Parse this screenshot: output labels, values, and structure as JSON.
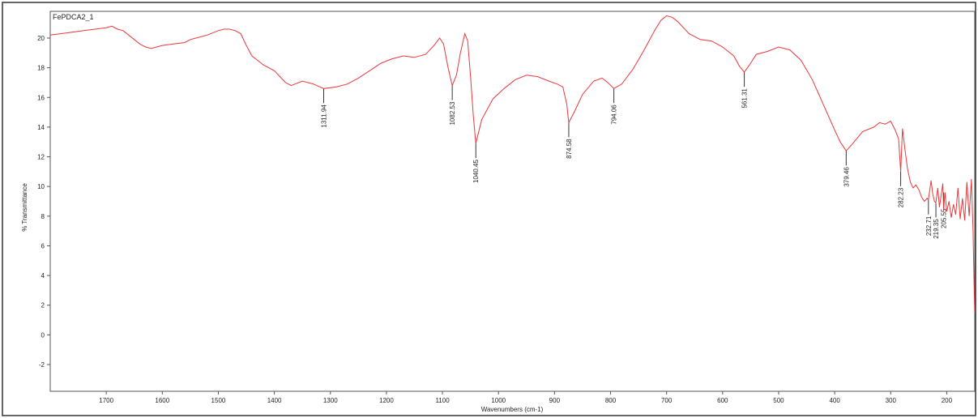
{
  "chart_data": {
    "type": "line",
    "title": "FePDCA2_1",
    "xlabel": "Wavenumbers (cm-1)",
    "ylabel": "% Transmittance",
    "xlim": [
      1800,
      150
    ],
    "ylim": [
      -3.8,
      21.8
    ],
    "x_reversed": true,
    "grid": false,
    "x_ticks": [
      1700,
      1600,
      1500,
      1400,
      1300,
      1200,
      1100,
      1000,
      900,
      800,
      700,
      600,
      500,
      400,
      300,
      200
    ],
    "y_ticks": [
      -2,
      0,
      2,
      4,
      6,
      8,
      10,
      12,
      14,
      16,
      18,
      20
    ],
    "series": [
      {
        "color": "#e8383b",
        "x": [
          1800,
          1780,
          1760,
          1740,
          1720,
          1700,
          1690,
          1680,
          1670,
          1660,
          1650,
          1640,
          1630,
          1620,
          1600,
          1580,
          1560,
          1550,
          1540,
          1520,
          1500,
          1490,
          1480,
          1470,
          1460,
          1450,
          1440,
          1430,
          1420,
          1400,
          1390,
          1380,
          1370,
          1350,
          1330,
          1311.94,
          1290,
          1270,
          1250,
          1230,
          1210,
          1190,
          1170,
          1150,
          1130,
          1115,
          1105,
          1098,
          1090,
          1082.53,
          1075,
          1068,
          1060,
          1055,
          1050,
          1045,
          1040.45,
          1030,
          1010,
          990,
          970,
          950,
          930,
          910,
          895,
          885,
          878,
          874.58,
          865,
          850,
          830,
          815,
          805,
          794.06,
          780,
          760,
          740,
          720,
          710,
          700,
          690,
          680,
          660,
          640,
          620,
          600,
          580,
          570,
          561.31,
          550,
          540,
          520,
          500,
          480,
          460,
          440,
          420,
          400,
          390,
          379.46,
          370,
          350,
          330,
          320,
          310,
          300,
          292,
          286,
          282.23,
          279,
          275,
          270,
          265,
          260,
          255,
          250,
          245,
          240,
          235,
          232.71,
          228,
          225,
          222,
          219.35,
          216,
          213,
          210,
          207,
          205.55,
          203,
          200,
          196,
          192,
          188,
          184,
          180,
          176,
          172,
          168,
          164,
          160,
          156,
          153,
          151,
          150
        ],
        "y": [
          20.2,
          20.3,
          20.4,
          20.5,
          20.6,
          20.7,
          20.8,
          20.6,
          20.5,
          20.2,
          19.9,
          19.6,
          19.4,
          19.3,
          19.5,
          19.6,
          19.7,
          19.9,
          20.0,
          20.2,
          20.5,
          20.6,
          20.6,
          20.5,
          20.3,
          19.5,
          18.8,
          18.5,
          18.2,
          17.8,
          17.4,
          17.0,
          16.8,
          17.1,
          16.9,
          16.6,
          16.7,
          16.9,
          17.3,
          17.8,
          18.3,
          18.6,
          18.8,
          18.7,
          18.9,
          19.5,
          20.0,
          19.6,
          18.0,
          16.8,
          17.5,
          19.0,
          20.3,
          19.8,
          17.5,
          14.8,
          12.9,
          14.5,
          15.9,
          16.6,
          17.2,
          17.5,
          17.4,
          17.1,
          16.9,
          16.7,
          15.5,
          14.3,
          15.0,
          16.2,
          17.1,
          17.3,
          17.0,
          16.6,
          16.9,
          17.9,
          19.2,
          20.6,
          21.2,
          21.5,
          21.4,
          21.1,
          20.3,
          19.9,
          19.8,
          19.4,
          18.8,
          18.1,
          17.7,
          18.3,
          18.9,
          19.1,
          19.4,
          19.2,
          18.5,
          17.2,
          15.5,
          13.8,
          13.0,
          12.4,
          12.8,
          13.7,
          14.0,
          14.3,
          14.2,
          14.4,
          13.8,
          13.2,
          11.0,
          13.9,
          12.6,
          11.2,
          10.3,
          9.9,
          10.1,
          9.8,
          9.3,
          9.0,
          9.2,
          9.1,
          10.4,
          9.5,
          9.0,
          8.9,
          9.9,
          8.6,
          9.4,
          10.2,
          8.4,
          9.6,
          8.3,
          9.0,
          7.9,
          8.8,
          8.1,
          9.9,
          7.8,
          9.2,
          7.7,
          10.3,
          8.0,
          10.5,
          7.0,
          3.0,
          1.5
        ]
      }
    ],
    "annotations": [
      {
        "label": "1311.94",
        "x": 1311.94,
        "y": 16.6
      },
      {
        "label": "1082.53",
        "x": 1082.53,
        "y": 16.8
      },
      {
        "label": "1040.45",
        "x": 1040.45,
        "y": 12.9
      },
      {
        "label": "874.58",
        "x": 874.58,
        "y": 14.3
      },
      {
        "label": "794.06",
        "x": 794.06,
        "y": 16.6
      },
      {
        "label": "561.31",
        "x": 561.31,
        "y": 17.7
      },
      {
        "label": "379.46",
        "x": 379.46,
        "y": 12.4
      },
      {
        "label": "282.23",
        "x": 282.23,
        "y": 11.0
      },
      {
        "label": "232.71",
        "x": 232.71,
        "y": 9.1
      },
      {
        "label": "219.35",
        "x": 219.35,
        "y": 8.9
      },
      {
        "label": "205.55",
        "x": 205.55,
        "y": 9.6
      }
    ]
  }
}
